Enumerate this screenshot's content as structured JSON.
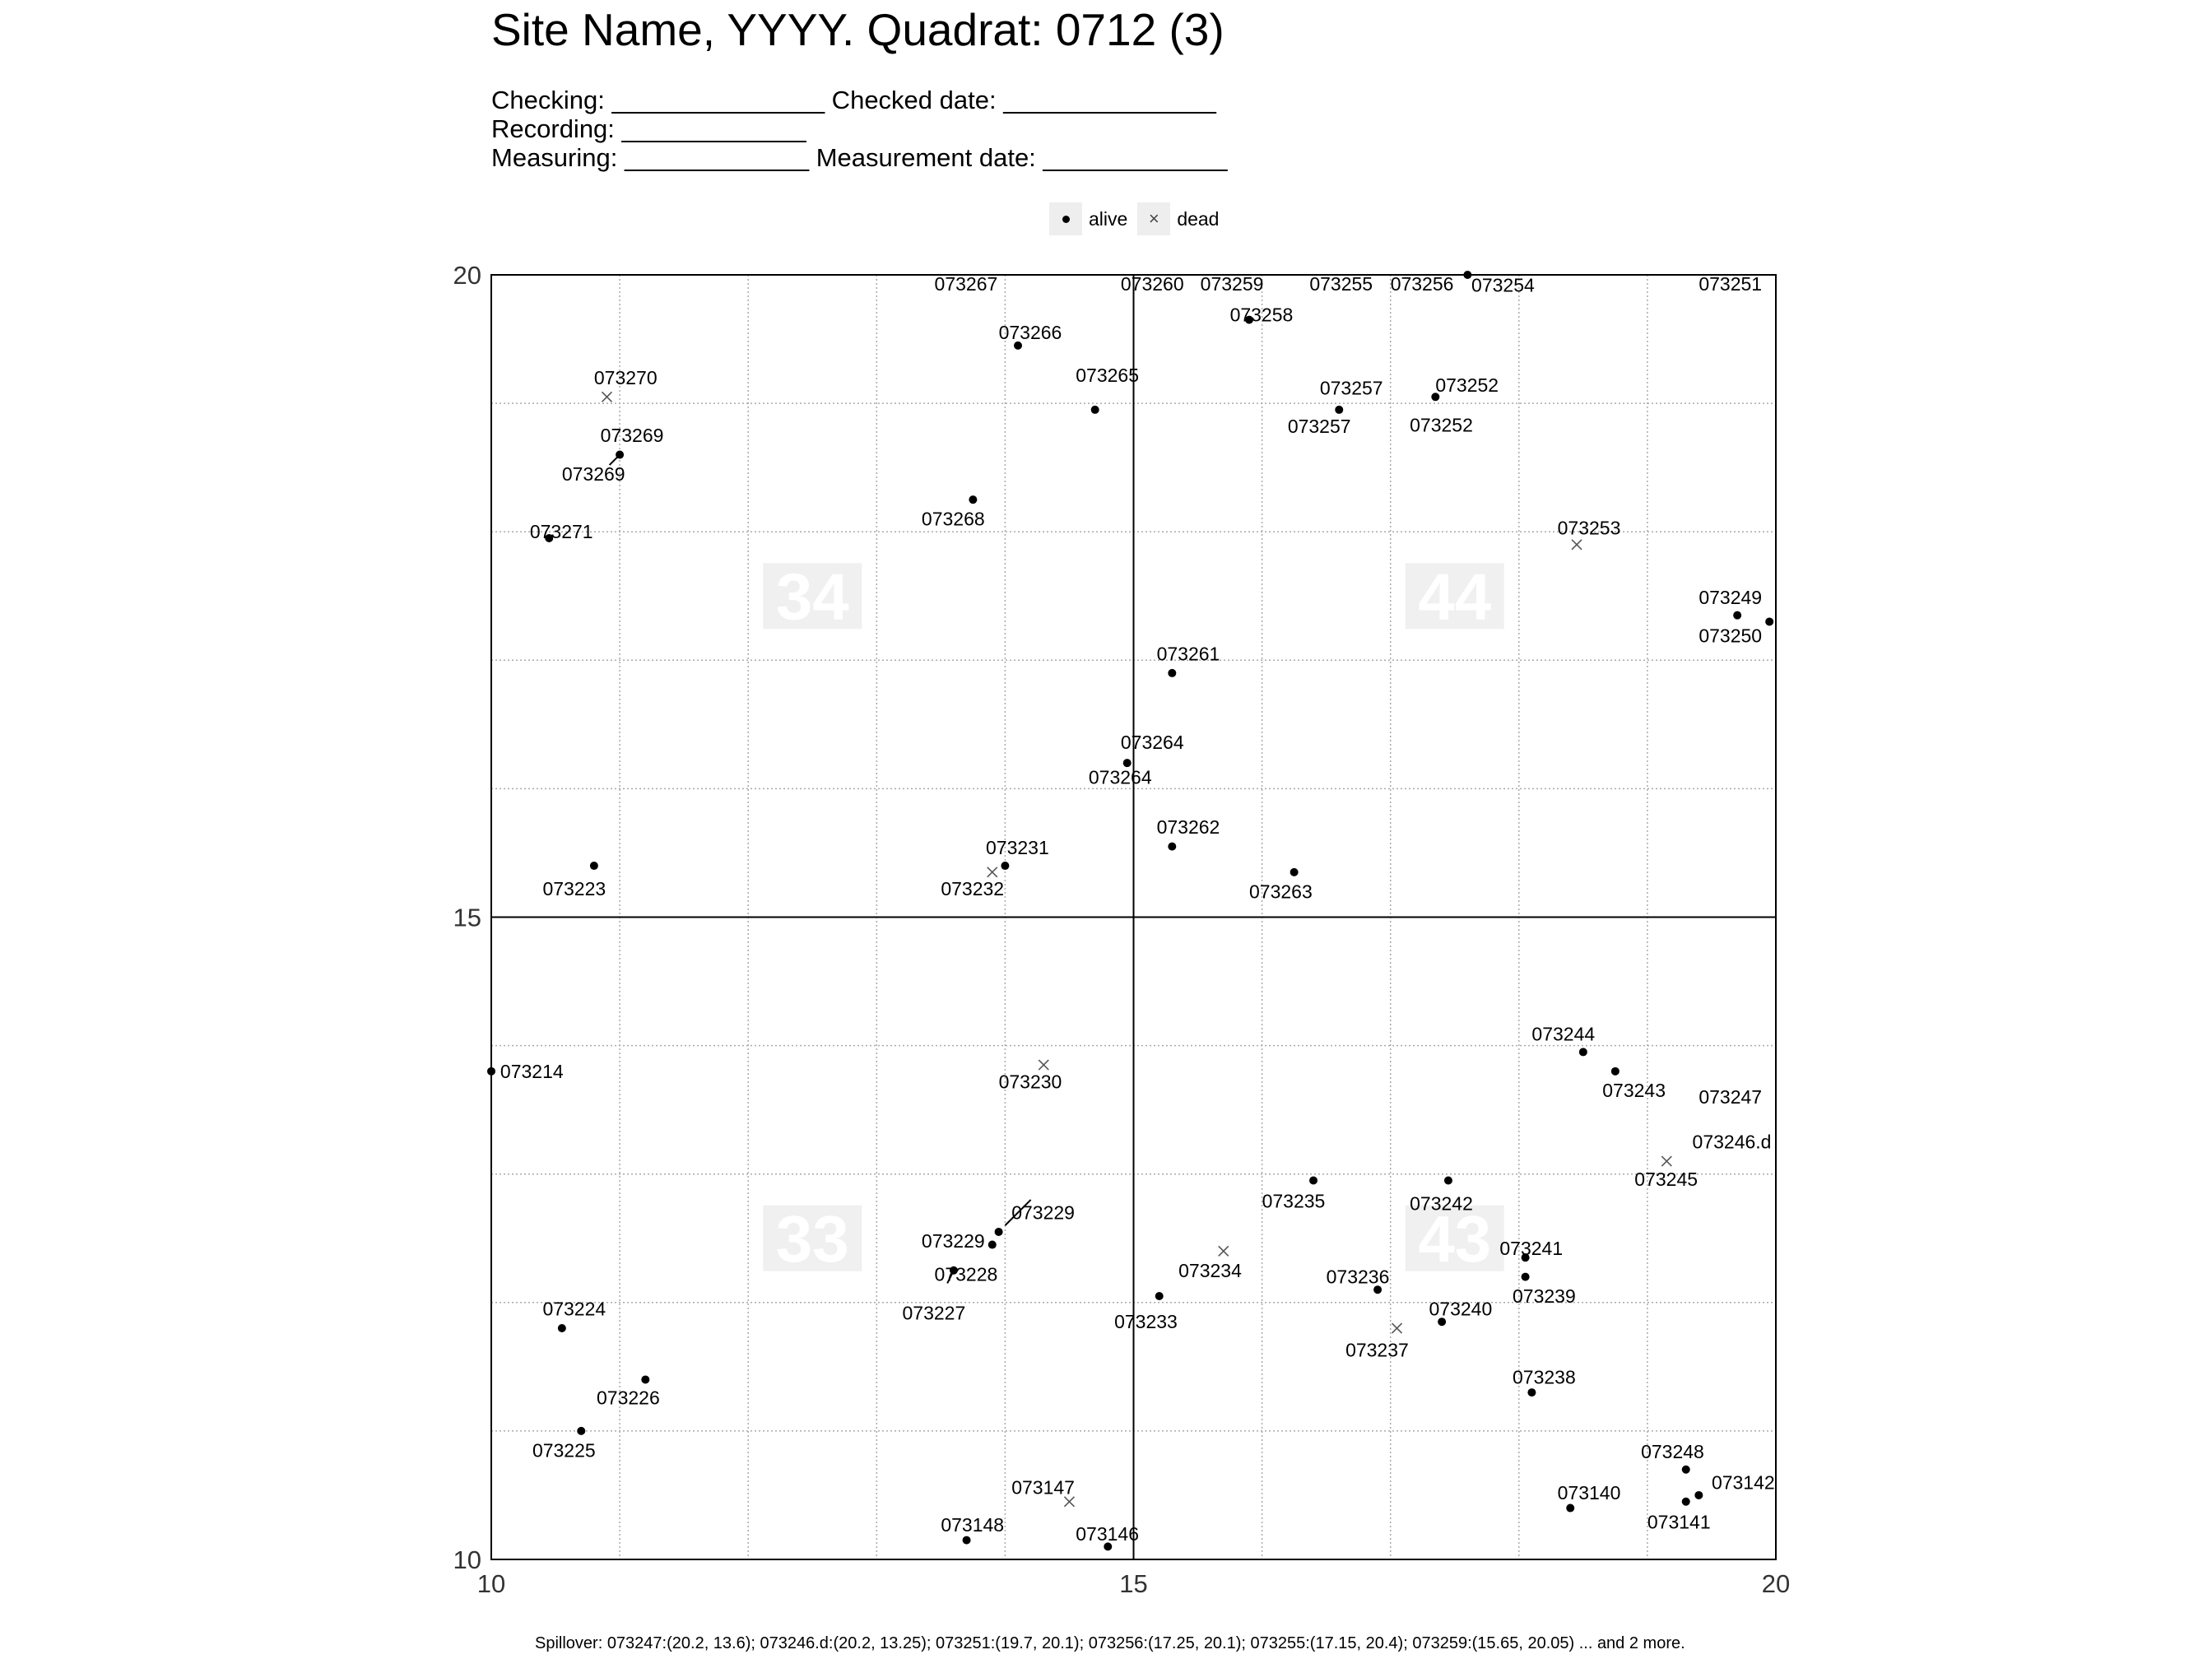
{
  "header": {
    "title": "Site Name, YYYY. Quadrat: 0712 (3)",
    "line1": "Checking: _______________ Checked date: _______________",
    "line2": "Recording: _____________",
    "line3": "Measuring: _____________ Measurement date: _____________"
  },
  "legend": {
    "alive_label": "alive",
    "dead_label": "dead"
  },
  "footer": {
    "spillover": "Spillover: 073247:(20.2, 13.6); 073246.d:(20.2, 13.25); 073251:(19.7, 20.1); 073256:(17.25, 20.1); 073255:(17.15, 20.4); 073259:(15.65, 20.05) ... and 2 more."
  },
  "chart_data": {
    "type": "scatter",
    "xlim": [
      10,
      20
    ],
    "ylim": [
      10,
      20
    ],
    "x_ticks": [
      "10",
      "15",
      "20"
    ],
    "y_ticks": [
      "10",
      "15",
      "20"
    ],
    "grid": true,
    "grid_step": 1,
    "legend_position": "top",
    "colors": {
      "point": "#000000",
      "dead_marker": "#555555",
      "grid": "#aaaaaa",
      "subquadrat_label": "#f0f0f0"
    },
    "subquadrats": [
      {
        "label": "34",
        "x": 12.5,
        "y": 17.5
      },
      {
        "label": "44",
        "x": 17.5,
        "y": 17.5
      },
      {
        "label": "33",
        "x": 12.5,
        "y": 12.5
      },
      {
        "label": "43",
        "x": 17.5,
        "y": 12.5
      }
    ],
    "points": [
      {
        "tag": "073270",
        "x": 10.9,
        "y": 19.05,
        "status": "dead"
      },
      {
        "tag": "073269",
        "x": 11.0,
        "y": 18.6,
        "status": "alive"
      },
      {
        "tag": "073271",
        "x": 10.45,
        "y": 17.95,
        "status": "alive"
      },
      {
        "tag": "073223",
        "x": 10.8,
        "y": 15.4,
        "status": "alive"
      },
      {
        "tag": "073266",
        "x": 14.1,
        "y": 19.45,
        "status": "alive"
      },
      {
        "tag": "073265",
        "x": 14.7,
        "y": 18.95,
        "status": "alive"
      },
      {
        "tag": "073268",
        "x": 13.75,
        "y": 18.25,
        "status": "alive"
      },
      {
        "tag": "073258",
        "x": 15.9,
        "y": 19.65,
        "status": "alive"
      },
      {
        "tag": "073257",
        "x": 16.6,
        "y": 18.95,
        "status": "alive"
      },
      {
        "tag": "073252",
        "x": 17.35,
        "y": 19.05,
        "status": "alive"
      },
      {
        "tag": "073254",
        "x": 17.6,
        "y": 20.0,
        "status": "alive"
      },
      {
        "tag": "073253",
        "x": 18.45,
        "y": 17.9,
        "status": "dead"
      },
      {
        "tag": "073249",
        "x": 19.7,
        "y": 17.35,
        "status": "alive"
      },
      {
        "tag": "073250",
        "x": 19.95,
        "y": 17.3,
        "status": "alive"
      },
      {
        "tag": "073261",
        "x": 15.3,
        "y": 16.9,
        "status": "alive"
      },
      {
        "tag": "073264",
        "x": 14.95,
        "y": 16.2,
        "status": "alive"
      },
      {
        "tag": "073262",
        "x": 15.3,
        "y": 15.55,
        "status": "alive"
      },
      {
        "tag": "073263",
        "x": 16.25,
        "y": 15.35,
        "status": "alive"
      },
      {
        "tag": "073231",
        "x": 14.0,
        "y": 15.4,
        "status": "alive"
      },
      {
        "tag": "073232",
        "x": 13.9,
        "y": 15.35,
        "status": "dead"
      },
      {
        "tag": "073214",
        "x": 10.0,
        "y": 13.8,
        "status": "alive"
      },
      {
        "tag": "073230",
        "x": 14.3,
        "y": 13.85,
        "status": "dead"
      },
      {
        "tag": "073244",
        "x": 18.5,
        "y": 13.95,
        "status": "alive"
      },
      {
        "tag": "073243",
        "x": 18.75,
        "y": 13.8,
        "status": "alive"
      },
      {
        "tag": "073245",
        "x": 19.15,
        "y": 13.1,
        "status": "dead"
      },
      {
        "tag": "073235",
        "x": 16.4,
        "y": 12.95,
        "status": "alive"
      },
      {
        "tag": "073242",
        "x": 17.45,
        "y": 12.95,
        "status": "alive"
      },
      {
        "tag": "073229",
        "x": 13.95,
        "y": 12.55,
        "status": "alive"
      },
      {
        "tag": "073228",
        "x": 13.9,
        "y": 12.45,
        "status": "alive"
      },
      {
        "tag": "073227",
        "x": 13.6,
        "y": 12.25,
        "status": "alive"
      },
      {
        "tag": "073234",
        "x": 15.7,
        "y": 12.4,
        "status": "dead"
      },
      {
        "tag": "073233",
        "x": 15.2,
        "y": 12.05,
        "status": "alive"
      },
      {
        "tag": "073236",
        "x": 16.9,
        "y": 12.1,
        "status": "alive"
      },
      {
        "tag": "073237",
        "x": 17.05,
        "y": 11.8,
        "status": "dead"
      },
      {
        "tag": "073240",
        "x": 17.4,
        "y": 11.85,
        "status": "alive"
      },
      {
        "tag": "073241",
        "x": 18.05,
        "y": 12.35,
        "status": "alive"
      },
      {
        "tag": "073239",
        "x": 18.05,
        "y": 12.2,
        "status": "alive"
      },
      {
        "tag": "073238",
        "x": 18.1,
        "y": 11.3,
        "status": "alive"
      },
      {
        "tag": "073224",
        "x": 10.55,
        "y": 11.8,
        "status": "alive"
      },
      {
        "tag": "073226",
        "x": 11.2,
        "y": 11.4,
        "status": "alive"
      },
      {
        "tag": "073225",
        "x": 10.7,
        "y": 11.0,
        "status": "alive"
      },
      {
        "tag": "073147",
        "x": 14.5,
        "y": 10.45,
        "status": "dead"
      },
      {
        "tag": "073148",
        "x": 13.7,
        "y": 10.15,
        "status": "alive"
      },
      {
        "tag": "073146",
        "x": 14.8,
        "y": 10.1,
        "status": "alive"
      },
      {
        "tag": "073248",
        "x": 19.3,
        "y": 10.7,
        "status": "alive"
      },
      {
        "tag": "073142",
        "x": 19.4,
        "y": 10.5,
        "status": "alive"
      },
      {
        "tag": "073141",
        "x": 19.3,
        "y": 10.45,
        "status": "alive"
      },
      {
        "tag": "073140",
        "x": 18.4,
        "y": 10.4,
        "status": "alive"
      }
    ],
    "labels": [
      {
        "text": "073270",
        "x": 10.8,
        "y": 19.2
      },
      {
        "text": "073269",
        "x": 10.85,
        "y": 18.75
      },
      {
        "text": "073269",
        "x": 10.55,
        "y": 18.45
      },
      {
        "text": "073271",
        "x": 10.3,
        "y": 18.0
      },
      {
        "text": "073223",
        "x": 10.4,
        "y": 15.22
      },
      {
        "text": "073267",
        "x": 13.45,
        "y": 19.93
      },
      {
        "text": "073266",
        "x": 13.95,
        "y": 19.55
      },
      {
        "text": "073265",
        "x": 14.55,
        "y": 19.22
      },
      {
        "text": "073268",
        "x": 13.35,
        "y": 18.1
      },
      {
        "text": "073260",
        "x": 14.9,
        "y": 19.93
      },
      {
        "text": "073259",
        "x": 15.52,
        "y": 19.93
      },
      {
        "text": "073258",
        "x": 15.75,
        "y": 19.69
      },
      {
        "text": "073255",
        "x": 16.37,
        "y": 19.93
      },
      {
        "text": "073256",
        "x": 17.0,
        "y": 19.93
      },
      {
        "text": "073254",
        "x": 17.63,
        "y": 19.92
      },
      {
        "text": "073251",
        "x": 19.4,
        "y": 19.93
      },
      {
        "text": "073257",
        "x": 16.45,
        "y": 19.12
      },
      {
        "text": "073257",
        "x": 16.2,
        "y": 18.82
      },
      {
        "text": "073252",
        "x": 17.35,
        "y": 19.14
      },
      {
        "text": "073252",
        "x": 17.15,
        "y": 18.83
      },
      {
        "text": "073253",
        "x": 18.3,
        "y": 18.03
      },
      {
        "text": "073249",
        "x": 19.4,
        "y": 17.49
      },
      {
        "text": "073250",
        "x": 19.4,
        "y": 17.19
      },
      {
        "text": "073261",
        "x": 15.18,
        "y": 17.05
      },
      {
        "text": "073264",
        "x": 14.9,
        "y": 16.36
      },
      {
        "text": "073264",
        "x": 14.65,
        "y": 16.09
      },
      {
        "text": "073262",
        "x": 15.18,
        "y": 15.7
      },
      {
        "text": "073263",
        "x": 15.9,
        "y": 15.2
      },
      {
        "text": "073231",
        "x": 13.85,
        "y": 15.54
      },
      {
        "text": "073232",
        "x": 13.5,
        "y": 15.22
      },
      {
        "text": "073214",
        "x": 10.07,
        "y": 13.8
      },
      {
        "text": "073230",
        "x": 13.95,
        "y": 13.72
      },
      {
        "text": "073244",
        "x": 18.1,
        "y": 14.09
      },
      {
        "text": "073243",
        "x": 18.65,
        "y": 13.65
      },
      {
        "text": "073247",
        "x": 19.4,
        "y": 13.6
      },
      {
        "text": "073246.d",
        "x": 19.35,
        "y": 13.25
      },
      {
        "text": "073245",
        "x": 18.9,
        "y": 12.96
      },
      {
        "text": "073235",
        "x": 16.0,
        "y": 12.79
      },
      {
        "text": "073242",
        "x": 17.15,
        "y": 12.77
      },
      {
        "text": "073229",
        "x": 14.05,
        "y": 12.7
      },
      {
        "text": "073229",
        "x": 13.35,
        "y": 12.48
      },
      {
        "text": "073228",
        "x": 13.45,
        "y": 12.22
      },
      {
        "text": "073227",
        "x": 13.2,
        "y": 11.92
      },
      {
        "text": "073234",
        "x": 15.35,
        "y": 12.25
      },
      {
        "text": "073233",
        "x": 14.85,
        "y": 11.85
      },
      {
        "text": "073236",
        "x": 16.5,
        "y": 12.2
      },
      {
        "text": "073237",
        "x": 16.65,
        "y": 11.63
      },
      {
        "text": "073240",
        "x": 17.3,
        "y": 11.95
      },
      {
        "text": "073241",
        "x": 17.85,
        "y": 12.42
      },
      {
        "text": "073239",
        "x": 17.95,
        "y": 12.05
      },
      {
        "text": "073238",
        "x": 17.95,
        "y": 11.42
      },
      {
        "text": "073224",
        "x": 10.4,
        "y": 11.95
      },
      {
        "text": "073226",
        "x": 10.82,
        "y": 11.26
      },
      {
        "text": "073225",
        "x": 10.32,
        "y": 10.85
      },
      {
        "text": "073147",
        "x": 14.05,
        "y": 10.56
      },
      {
        "text": "073148",
        "x": 13.5,
        "y": 10.27
      },
      {
        "text": "073146",
        "x": 14.55,
        "y": 10.2
      },
      {
        "text": "073248",
        "x": 18.95,
        "y": 10.84
      },
      {
        "text": "073142",
        "x": 19.5,
        "y": 10.6
      },
      {
        "text": "073141",
        "x": 19.0,
        "y": 10.29
      },
      {
        "text": "073140",
        "x": 18.3,
        "y": 10.52
      }
    ],
    "leader_lines": [
      {
        "x1": 10.92,
        "y1": 18.52,
        "x2": 11.0,
        "y2": 18.6
      },
      {
        "x1": 14.0,
        "y1": 12.6,
        "x2": 14.2,
        "y2": 12.8
      },
      {
        "x1": 13.55,
        "y1": 12.15,
        "x2": 13.6,
        "y2": 12.25
      }
    ]
  }
}
